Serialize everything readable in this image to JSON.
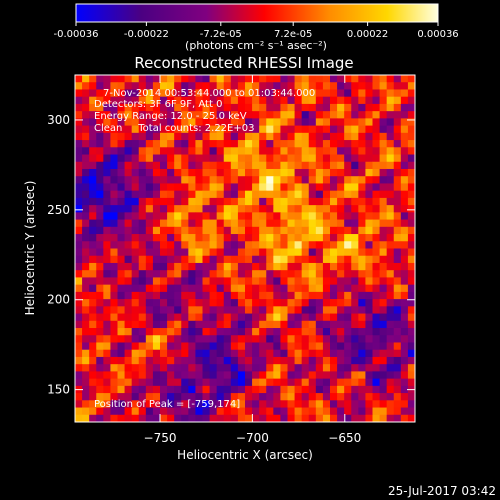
{
  "chart_data": {
    "type": "heatmap",
    "title": "Reconstructed RHESSI Image",
    "xlabel": "Heliocentric X (arcsec)",
    "ylabel": "Heliocentric Y (arcsec)",
    "xlim": [
      -796,
      -612
    ],
    "ylim": [
      132,
      325
    ],
    "x_ticks": [
      -750,
      -700,
      -650
    ],
    "y_ticks": [
      150,
      200,
      250,
      300
    ],
    "colorbar": {
      "range": [
        -0.00036,
        0.00036
      ],
      "ticks": [
        -0.00036,
        -0.00022,
        -7.2e-05,
        7.2e-05,
        0.00022,
        0.00036
      ],
      "tick_labels": [
        "-0.00036",
        "-0.00022",
        "-7.2e-05",
        "7.2e-05",
        "0.00022",
        "0.00036"
      ],
      "unit_label": "(photons cm⁻² s⁻¹ asec⁻²)",
      "colors": [
        "#0000ff",
        "#4b0082",
        "#800080",
        "#ff0000",
        "#ff8c00",
        "#ffd700",
        "#ffffe0"
      ]
    },
    "annotations": {
      "time_range": "7-Nov-2014 00:53:44.000 to 01:03:44.000",
      "detectors": "Detectors: 3F 6F 9F, Att 0",
      "energy": "Energy Range: 12.0 - 25.0 keV",
      "clean": "Clean     Total counts: 2.22E+03",
      "peak": "Position of Peak = [-759,174]"
    },
    "peak_position": [
      -759,
      174
    ]
  },
  "footer_timestamp": "25-Jul-2017 03:42"
}
